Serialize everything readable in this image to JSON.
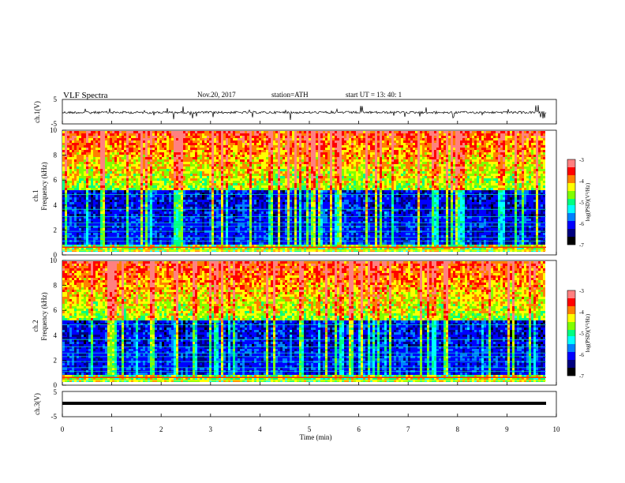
{
  "header": {
    "title": "VLF  Spectra",
    "date": "Nov.20, 2017",
    "station": "station=ATH",
    "start_ut": "start  UT  =    13: 40: 1"
  },
  "chart_data": [
    {
      "type": "line",
      "panel": "ch1-waveform",
      "ylabel": "ch.1(V)",
      "yticks": [
        "5",
        "-5"
      ],
      "ylim": [
        -5,
        5
      ],
      "xlim": [
        0,
        10
      ],
      "series": [
        {
          "values_description_level": -0.4,
          "noise_amplitude": 0.8
        }
      ]
    },
    {
      "type": "heatmap",
      "panel": "ch1-spectrogram",
      "ylabel": "ch.1\nFrequency  (kHz)",
      "ylabel_line1": "ch.1",
      "ylabel_line2": "Frequency  (kHz)",
      "yticks": [
        "0",
        "2",
        "4",
        "6",
        "8",
        "10"
      ],
      "ylim": [
        0,
        10
      ],
      "xlim": [
        0,
        9.8
      ],
      "colorbar": {
        "label": "log(PSD)(V²/Hz)",
        "ticks": [
          "-3",
          "-4",
          "-5",
          "-6",
          "-7"
        ],
        "range": [
          -7,
          -3
        ]
      }
    },
    {
      "type": "heatmap",
      "panel": "ch2-spectrogram",
      "ylabel_line1": "ch.2",
      "ylabel_line2": "Frequency  (kHz)",
      "yticks": [
        "0",
        "2",
        "4",
        "6",
        "8",
        "10"
      ],
      "ylim": [
        0,
        10
      ],
      "xlim": [
        0,
        9.8
      ],
      "colorbar": {
        "label": "log(PSD)(V²/Hz)",
        "ticks": [
          "-3",
          "-4",
          "-5",
          "-6",
          "-7"
        ],
        "range": [
          -7,
          -3
        ]
      }
    },
    {
      "type": "line",
      "panel": "ch3-waveform",
      "ylabel": "ch.3(V)",
      "yticks": [
        "5",
        "-5"
      ],
      "ylim": [
        -5,
        5
      ],
      "xlim": [
        0,
        10
      ],
      "series": [
        {
          "constant_value": -2.4
        }
      ]
    }
  ],
  "x_axis": {
    "label": "Time  (min)",
    "ticks": [
      "0",
      "1",
      "2",
      "3",
      "4",
      "5",
      "6",
      "7",
      "8",
      "9",
      "10"
    ]
  },
  "colors": {
    "colormap": [
      "#000000",
      "#00007f",
      "#0000ff",
      "#0080ff",
      "#00ffff",
      "#00ff80",
      "#80ff00",
      "#ffff00",
      "#ff8000",
      "#ff0000",
      "#ff8080",
      "#ffffff"
    ],
    "axis": "#000000"
  }
}
